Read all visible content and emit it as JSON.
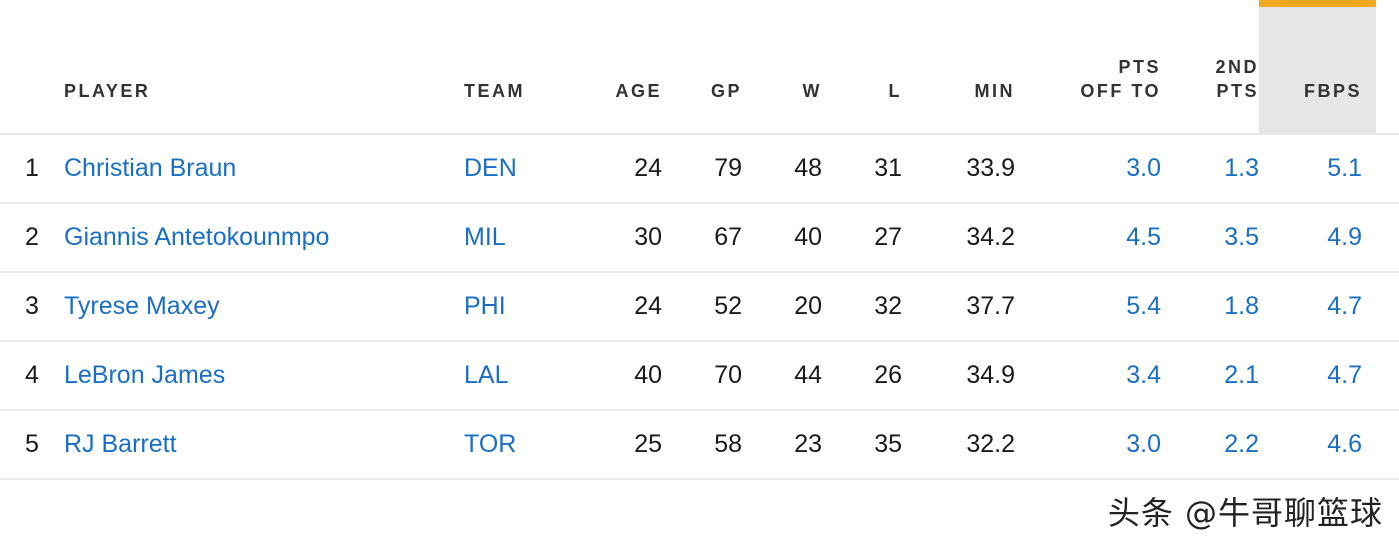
{
  "table": {
    "headers": {
      "player": "PLAYER",
      "team": "TEAM",
      "age": "AGE",
      "gp": "GP",
      "w": "W",
      "l": "L",
      "min": "MIN",
      "pts_off_to_line1": "PTS",
      "pts_off_to_line2": "OFF TO",
      "second_pts_line1": "2ND",
      "second_pts_line2": "PTS",
      "fbps": "FBPS"
    },
    "sorted_column": "FBPS",
    "rows": [
      {
        "rank": "1",
        "player": "Christian Braun",
        "team": "DEN",
        "age": "24",
        "gp": "79",
        "w": "48",
        "l": "31",
        "min": "33.9",
        "pts_off_to": "3.0",
        "second_pts": "1.3",
        "fbps": "5.1"
      },
      {
        "rank": "2",
        "player": "Giannis Antetokounmpo",
        "team": "MIL",
        "age": "30",
        "gp": "67",
        "w": "40",
        "l": "27",
        "min": "34.2",
        "pts_off_to": "4.5",
        "second_pts": "3.5",
        "fbps": "4.9"
      },
      {
        "rank": "3",
        "player": "Tyrese Maxey",
        "team": "PHI",
        "age": "24",
        "gp": "52",
        "w": "20",
        "l": "32",
        "min": "37.7",
        "pts_off_to": "5.4",
        "second_pts": "1.8",
        "fbps": "4.7"
      },
      {
        "rank": "4",
        "player": "LeBron James",
        "team": "LAL",
        "age": "40",
        "gp": "70",
        "w": "44",
        "l": "26",
        "min": "34.9",
        "pts_off_to": "3.4",
        "second_pts": "2.1",
        "fbps": "4.7"
      },
      {
        "rank": "5",
        "player": "RJ Barrett",
        "team": "TOR",
        "age": "25",
        "gp": "58",
        "w": "23",
        "l": "35",
        "min": "32.2",
        "pts_off_to": "3.0",
        "second_pts": "2.2",
        "fbps": "4.6"
      }
    ]
  },
  "watermark": "头条 @牛哥聊篮球",
  "colors": {
    "link": "#1a6fc4",
    "sort_accent": "#f2a81d",
    "sorted_header_bg": "#e8e6e4"
  }
}
